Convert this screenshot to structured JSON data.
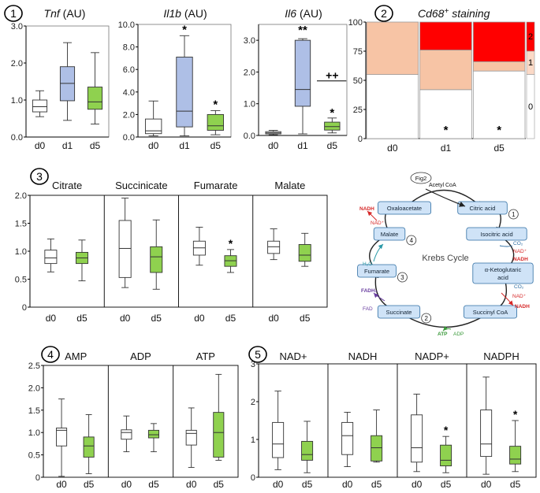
{
  "colors": {
    "blue": "#aebfe6",
    "green": "#8fd14f",
    "white": "#ffffff",
    "stroke": "#333333",
    "heat_red": "#ff0000",
    "heat_peach": "#f7c4a5",
    "heat_light": "#fbd9c6",
    "cycle_box": "#cfe3f7",
    "cycle_box_stroke": "#2f6ea3",
    "nadh_red": "#d62828",
    "fadh_purple": "#6a3fa0",
    "atp_green": "#3a9a3a",
    "h2o_teal": "#2b9aa8"
  },
  "panel_numbers": [
    "1",
    "2",
    "3",
    "4",
    "5"
  ],
  "chart_data": [
    {
      "id": "tnf",
      "type": "box",
      "title_italic": "Tnf",
      "title_suffix": " (AU)",
      "ylim": [
        0,
        3
      ],
      "yticks": [
        "0.0",
        "1.0",
        "2.0",
        "3.0"
      ],
      "ytick_values": [
        0,
        1,
        2,
        3
      ],
      "categories": [
        "d0",
        "d1",
        "d5"
      ],
      "boxes": [
        {
          "label": "d0",
          "min": 0.55,
          "q1": 0.68,
          "median": 0.82,
          "q3": 1.0,
          "max": 1.25,
          "fill": "white"
        },
        {
          "label": "d1",
          "min": 0.45,
          "q1": 0.98,
          "median": 1.45,
          "q3": 1.9,
          "max": 2.55,
          "fill": "blue"
        },
        {
          "label": "d5",
          "min": 0.35,
          "q1": 0.75,
          "median": 0.95,
          "q3": 1.35,
          "max": 2.28,
          "fill": "green"
        }
      ],
      "annotations": []
    },
    {
      "id": "il1b",
      "type": "box",
      "title_italic": "Il1b",
      "title_suffix": " (AU)",
      "ylim": [
        0,
        10
      ],
      "yticks": [
        "0.0",
        "2.0",
        "4.0",
        "6.0",
        "8.0",
        "10.0"
      ],
      "ytick_values": [
        0,
        2,
        4,
        6,
        8,
        10
      ],
      "categories": [
        "d0",
        "d1",
        "d5"
      ],
      "boxes": [
        {
          "label": "d0",
          "min": 0.1,
          "q1": 0.3,
          "median": 0.55,
          "q3": 1.6,
          "max": 3.2,
          "fill": "white"
        },
        {
          "label": "d1",
          "min": 0.1,
          "q1": 0.9,
          "median": 2.3,
          "q3": 7.1,
          "max": 9.0,
          "fill": "blue"
        },
        {
          "label": "d5",
          "min": 0.2,
          "q1": 0.6,
          "median": 1.0,
          "q3": 2.0,
          "max": 2.35,
          "fill": "green"
        }
      ],
      "annotations": [
        {
          "text": "*",
          "box": "d1"
        },
        {
          "text": "*",
          "box": "d5"
        }
      ]
    },
    {
      "id": "il6",
      "type": "box",
      "title_italic": "Il6",
      "title_suffix": " (AU)",
      "ylim": [
        0,
        3.5
      ],
      "yticks": [
        "0.0",
        "1.0",
        "2.0",
        "3.0"
      ],
      "ytick_values": [
        0,
        1,
        2,
        3
      ],
      "categories": [
        "d0",
        "d1",
        "d5"
      ],
      "boxes": [
        {
          "label": "d0",
          "min": 0.02,
          "q1": 0.05,
          "median": 0.08,
          "q3": 0.12,
          "max": 0.16,
          "fill": "white"
        },
        {
          "label": "d1",
          "min": 0.05,
          "q1": 0.92,
          "median": 1.45,
          "q3": 3.0,
          "max": 3.05,
          "fill": "blue"
        },
        {
          "label": "d5",
          "min": 0.08,
          "q1": 0.17,
          "median": 0.28,
          "q3": 0.42,
          "max": 0.55,
          "fill": "green"
        }
      ],
      "annotations": [
        {
          "text": "**",
          "box": "d1"
        },
        {
          "text": "++",
          "box": "d5"
        },
        {
          "text": "*",
          "box": "d5"
        }
      ]
    },
    {
      "id": "cd68",
      "type": "heatmap",
      "title_italic": "Cd68",
      "title_sup": "+",
      "title_suffix": " staining",
      "ylim": [
        0,
        100
      ],
      "yticks": [
        "0",
        "25",
        "50",
        "75",
        "100"
      ],
      "ytick_values": [
        0,
        25,
        50,
        75,
        100
      ],
      "categories": [
        "d0",
        "d1",
        "d5"
      ],
      "segments": [
        {
          "label": "d0",
          "score0": 55,
          "score1": 45,
          "score2": 0
        },
        {
          "label": "d1",
          "score0": 42,
          "score1": 34,
          "score2": 24
        },
        {
          "label": "d5",
          "score0": 58,
          "score1": 8,
          "score2": 34
        }
      ],
      "legend_labels": [
        "2",
        "1",
        "0"
      ],
      "annotations": [
        {
          "text": "*",
          "col": "d1"
        },
        {
          "text": "*",
          "col": "d5"
        }
      ]
    },
    {
      "id": "tca",
      "type": "box-grouped",
      "ylim": [
        0,
        2.0
      ],
      "yticks": [
        "0",
        "0.5",
        "1.0",
        "1.5",
        "2.0"
      ],
      "ytick_values": [
        0,
        0.5,
        1.0,
        1.5,
        2.0
      ],
      "categories": [
        "d0",
        "d5"
      ],
      "groups": [
        {
          "name": "Citrate",
          "boxes": [
            {
              "label": "d0",
              "min": 0.63,
              "q1": 0.78,
              "median": 0.88,
              "q3": 1.02,
              "max": 1.22,
              "fill": "white"
            },
            {
              "label": "d5",
              "min": 0.47,
              "q1": 0.78,
              "median": 0.88,
              "q3": 0.98,
              "max": 1.2,
              "fill": "green"
            }
          ]
        },
        {
          "name": "Succinicate",
          "boxes": [
            {
              "label": "d0",
              "min": 0.35,
              "q1": 0.53,
              "median": 1.05,
              "q3": 1.55,
              "max": 1.95,
              "fill": "white"
            },
            {
              "label": "d5",
              "min": 0.32,
              "q1": 0.62,
              "median": 0.9,
              "q3": 1.08,
              "max": 1.56,
              "fill": "green"
            }
          ]
        },
        {
          "name": "Fumarate",
          "boxes": [
            {
              "label": "d0",
              "min": 0.75,
              "q1": 0.93,
              "median": 1.06,
              "q3": 1.18,
              "max": 1.43,
              "fill": "white"
            },
            {
              "label": "d5",
              "min": 0.62,
              "q1": 0.73,
              "median": 0.83,
              "q3": 0.92,
              "max": 1.03,
              "fill": "green"
            }
          ]
        },
        {
          "name": "Malate",
          "boxes": [
            {
              "label": "d0",
              "min": 0.85,
              "q1": 0.96,
              "median": 1.08,
              "q3": 1.18,
              "max": 1.4,
              "fill": "white"
            },
            {
              "label": "d5",
              "min": 0.73,
              "q1": 0.82,
              "median": 0.93,
              "q3": 1.12,
              "max": 1.32,
              "fill": "green"
            }
          ]
        }
      ],
      "annotations": [
        {
          "text": "*",
          "group": "Fumarate",
          "box": "d5"
        }
      ]
    },
    {
      "id": "adenylates",
      "type": "box-grouped",
      "ylim": [
        0,
        2.5
      ],
      "yticks": [
        "0",
        "0.5",
        "1.0",
        "1.5",
        "2.0",
        "2.5"
      ],
      "ytick_values": [
        0,
        0.5,
        1.0,
        1.5,
        2.0,
        2.5
      ],
      "categories": [
        "d0",
        "d5"
      ],
      "groups": [
        {
          "name": "AMP",
          "boxes": [
            {
              "label": "d0",
              "min": 0.02,
              "q1": 0.7,
              "median": 1.05,
              "q3": 1.1,
              "max": 1.75,
              "fill": "white"
            },
            {
              "label": "d5",
              "min": 0.08,
              "q1": 0.45,
              "median": 0.7,
              "q3": 0.9,
              "max": 1.4,
              "fill": "green"
            }
          ]
        },
        {
          "name": "ADP",
          "boxes": [
            {
              "label": "d0",
              "min": 0.57,
              "q1": 0.85,
              "median": 1.0,
              "q3": 1.06,
              "max": 1.37,
              "fill": "white"
            },
            {
              "label": "d5",
              "min": 0.57,
              "q1": 0.88,
              "median": 0.95,
              "q3": 1.05,
              "max": 1.2,
              "fill": "green"
            }
          ]
        },
        {
          "name": "ATP",
          "boxes": [
            {
              "label": "d0",
              "min": 0.22,
              "q1": 0.72,
              "median": 0.98,
              "q3": 1.05,
              "max": 1.55,
              "fill": "white"
            },
            {
              "label": "d5",
              "min": 0.38,
              "q1": 0.45,
              "median": 1.0,
              "q3": 1.45,
              "max": 2.3,
              "fill": "green"
            }
          ]
        }
      ],
      "annotations": []
    },
    {
      "id": "nicotinamides",
      "type": "box-grouped",
      "ylim": [
        0,
        3
      ],
      "yticks": [
        "0",
        "1",
        "2",
        "3"
      ],
      "ytick_values": [
        0,
        1,
        2,
        3
      ],
      "categories": [
        "d0",
        "d5"
      ],
      "groups": [
        {
          "name": "NAD+",
          "boxes": [
            {
              "label": "d0",
              "min": 0.2,
              "q1": 0.52,
              "median": 0.88,
              "q3": 1.45,
              "max": 2.28,
              "fill": "white"
            },
            {
              "label": "d5",
              "min": 0.12,
              "q1": 0.45,
              "median": 0.6,
              "q3": 0.95,
              "max": 1.48,
              "fill": "green"
            }
          ]
        },
        {
          "name": "NADH",
          "boxes": [
            {
              "label": "d0",
              "min": 0.28,
              "q1": 0.6,
              "median": 1.1,
              "q3": 1.45,
              "max": 1.72,
              "fill": "white"
            },
            {
              "label": "d5",
              "min": 0.4,
              "q1": 0.43,
              "median": 0.78,
              "q3": 1.1,
              "max": 1.78,
              "fill": "green"
            }
          ]
        },
        {
          "name": "NADP+",
          "boxes": [
            {
              "label": "d0",
              "min": 0.15,
              "q1": 0.4,
              "median": 0.78,
              "q3": 1.65,
              "max": 2.2,
              "fill": "white"
            },
            {
              "label": "d5",
              "min": 0.12,
              "q1": 0.3,
              "median": 0.45,
              "q3": 0.85,
              "max": 1.08,
              "fill": "green"
            }
          ]
        },
        {
          "name": "NADPH",
          "boxes": [
            {
              "label": "d0",
              "min": 0.08,
              "q1": 0.55,
              "median": 0.88,
              "q3": 1.78,
              "max": 2.65,
              "fill": "white"
            },
            {
              "label": "d5",
              "min": 0.15,
              "q1": 0.35,
              "median": 0.48,
              "q3": 0.82,
              "max": 1.5,
              "fill": "green"
            }
          ]
        }
      ],
      "annotations": [
        {
          "text": "*",
          "group": "NADP+",
          "box": "d5"
        },
        {
          "text": "*",
          "group": "NADPH",
          "box": "d5"
        }
      ]
    }
  ],
  "krebs": {
    "title": "Krebs Cycle",
    "nodes": [
      {
        "name": "Oxaloacetate",
        "num": ""
      },
      {
        "name": "Citric acid",
        "num": "1"
      },
      {
        "name": "Isocitric acid",
        "num": ""
      },
      {
        "name": "α-Ketoglutaric acid",
        "num": ""
      },
      {
        "name": "Succinyl CoA",
        "num": ""
      },
      {
        "name": "Succinate",
        "num": "2"
      },
      {
        "name": "Fumarate",
        "num": "3"
      },
      {
        "name": "Malate",
        "num": "4"
      }
    ],
    "fig2": "Fig2",
    "acetyl": "Acetyl CoA",
    "cofactors": {
      "nadh": "NADH",
      "nad": "NAD⁺",
      "co2": "CO₂",
      "fadh2": "FADH₂",
      "fad": "FAD",
      "atp": "ATP",
      "adp": "ADP",
      "h2o": "H₂O"
    }
  }
}
